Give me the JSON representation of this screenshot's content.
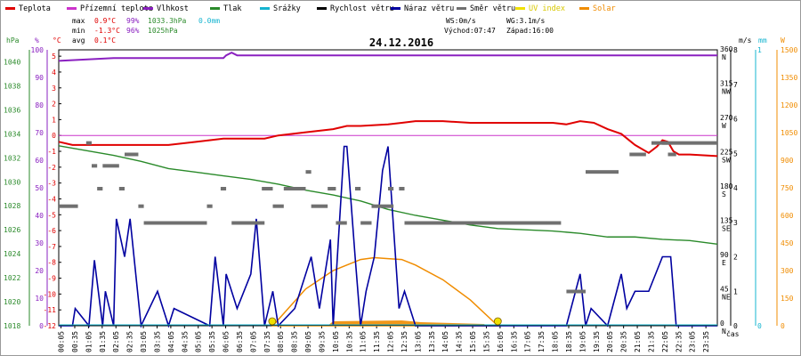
{
  "chart_data": {
    "type": "line",
    "title": "24.12.2016",
    "legend": [
      {
        "name": "Teplota",
        "color": "#e00000"
      },
      {
        "name": "Přízemní teplota",
        "color": "#cc33cc"
      },
      {
        "name": "Vlhkost",
        "color": "#8a20c0"
      },
      {
        "name": "Tlak",
        "color": "#2a8a2a"
      },
      {
        "name": "Srážky",
        "color": "#14b4d0"
      },
      {
        "name": "Rychlost větru",
        "color": "#000000"
      },
      {
        "name": "Náraz větru",
        "color": "#0000a0"
      },
      {
        "name": "Směr větru",
        "color": "#707070"
      },
      {
        "name": "UV index",
        "color": "#f0e000"
      },
      {
        "name": "Solar",
        "color": "#f08c00"
      }
    ],
    "stats": {
      "max_label": "max",
      "max_temp": "0.9°C",
      "max_hum": "99%",
      "max_press": "1033.3hPa",
      "max_rain": "0.0mm",
      "min_label": "min",
      "min_temp": "-1.3°C",
      "min_hum": "96%",
      "min_press": "1025hPa",
      "avg_label": "avg",
      "avg_temp": "0.1°C",
      "ws": "WS:0m/s",
      "wg": "WG:3.1m/s",
      "sunrise": "Východ:07:47",
      "sunset": "Západ:16:00"
    },
    "axis_headers": {
      "press": "hPa",
      "hum": "%",
      "temp": "°C",
      "wind": "m/s",
      "rain": "mm",
      "solar": "W",
      "time": "čas"
    },
    "y_axes": {
      "pressure": {
        "ticks": [
          1018,
          1020,
          1022,
          1024,
          1026,
          1028,
          1030,
          1032,
          1034,
          1036,
          1038,
          1040
        ],
        "range": [
          1018,
          1041
        ]
      },
      "humidity": {
        "ticks": [
          0,
          10,
          20,
          30,
          40,
          50,
          60,
          70,
          80,
          90,
          100
        ],
        "range": [
          0,
          100
        ]
      },
      "temperature": {
        "ticks": [
          -12,
          -11,
          -10,
          -9,
          -8,
          -7,
          -6,
          -5,
          -4,
          -3,
          -2,
          -1,
          0,
          1,
          2,
          3,
          4,
          5
        ],
        "range": [
          -12,
          5.4
        ]
      },
      "direction": {
        "ticks": [
          {
            "deg": "0",
            "dir": "N"
          },
          {
            "deg": "45",
            "dir": "NE"
          },
          {
            "deg": "90",
            "dir": "E"
          },
          {
            "deg": "135",
            "dir": "SE"
          },
          {
            "deg": "180",
            "dir": "S"
          },
          {
            "deg": "225",
            "dir": "SW"
          },
          {
            "deg": "270",
            "dir": "W"
          },
          {
            "deg": "315",
            "dir": "NW"
          },
          {
            "deg": "360",
            "dir": "N"
          }
        ]
      },
      "wind": {
        "ticks": [
          "0",
          "1",
          "2",
          "3",
          "4",
          "5",
          "6",
          "7",
          "8"
        ],
        "range": [
          0,
          8
        ]
      },
      "rain": {
        "ticks": [
          "0",
          "1"
        ],
        "range": [
          0,
          1
        ]
      },
      "solar": {
        "ticks": [
          "0",
          "150",
          "300",
          "450",
          "600",
          "750",
          "900",
          "1050",
          "1200",
          "1350",
          "1500"
        ],
        "range": [
          0,
          1500
        ]
      }
    },
    "x_axis": {
      "range_hours": [
        0,
        24
      ],
      "ticks": [
        "00:05",
        "00:35",
        "01:05",
        "01:35",
        "02:05",
        "02:35",
        "03:05",
        "03:35",
        "04:05",
        "04:35",
        "05:05",
        "05:35",
        "06:05",
        "06:35",
        "07:05",
        "07:35",
        "08:05",
        "08:35",
        "09:05",
        "09:35",
        "10:05",
        "10:35",
        "11:05",
        "11:35",
        "12:05",
        "12:35",
        "13:05",
        "13:35",
        "14:05",
        "14:35",
        "15:05",
        "15:35",
        "16:05",
        "16:35",
        "17:05",
        "17:35",
        "18:05",
        "18:35",
        "19:05",
        "19:35",
        "20:05",
        "20:35",
        "21:05",
        "21:35",
        "22:05",
        "22:35",
        "23:05",
        "23:35"
      ]
    },
    "series": [
      {
        "name": "Teplota",
        "axis": "temperature",
        "x": [
          0,
          0.5,
          1,
          2,
          3,
          4,
          5,
          6,
          7,
          7.5,
          8,
          9,
          10,
          10.5,
          11,
          12,
          12.5,
          13,
          14,
          15,
          16,
          17,
          18,
          18.5,
          19,
          19.5,
          20,
          20.5,
          21,
          21.5,
          21.8,
          22,
          22.2,
          22.4,
          22.6,
          23,
          24
        ],
        "values": [
          -0.4,
          -0.6,
          -0.6,
          -0.6,
          -0.6,
          -0.6,
          -0.4,
          -0.2,
          -0.2,
          -0.2,
          0.0,
          0.2,
          0.4,
          0.6,
          0.6,
          0.7,
          0.8,
          0.9,
          0.9,
          0.8,
          0.8,
          0.8,
          0.8,
          0.7,
          0.9,
          0.8,
          0.4,
          0.1,
          -0.6,
          -1.1,
          -0.7,
          -0.3,
          -0.4,
          -1.0,
          -1.2,
          -1.2,
          -1.3
        ]
      },
      {
        "name": "Přízemní teplota",
        "axis": "temperature",
        "x": [
          0,
          24
        ],
        "values": [
          0.0,
          0.0
        ]
      },
      {
        "name": "Vlhkost",
        "axis": "humidity",
        "x": [
          0,
          2,
          4,
          5,
          6,
          6.1,
          6.3,
          6.5,
          7,
          12,
          18,
          24
        ],
        "values": [
          96,
          97,
          97,
          97,
          97,
          98,
          99,
          98,
          98,
          98,
          98,
          98
        ]
      },
      {
        "name": "Tlak",
        "axis": "pressure",
        "x": [
          0,
          1,
          2,
          3,
          4,
          5,
          6,
          7,
          8,
          9,
          10,
          11,
          12,
          13,
          14,
          15,
          16,
          17,
          18,
          19,
          20,
          21,
          22,
          23,
          24
        ],
        "values": [
          1033,
          1032.6,
          1032.2,
          1031.7,
          1031.1,
          1030.8,
          1030.5,
          1030.2,
          1029.8,
          1029.3,
          1028.9,
          1028.4,
          1027.7,
          1027.2,
          1026.8,
          1026.4,
          1026.1,
          1026,
          1025.9,
          1025.7,
          1025.4,
          1025.4,
          1025.2,
          1025.1,
          1024.8
        ]
      },
      {
        "name": "Srážky",
        "axis": "rain",
        "x": [
          0,
          24
        ],
        "values": [
          0,
          0
        ]
      },
      {
        "name": "Rychlost větru",
        "axis": "wind",
        "x": [
          0,
          24
        ],
        "values": [
          0,
          0
        ]
      },
      {
        "name": "Náraz větru",
        "axis": "wind",
        "x": [
          0,
          0.5,
          0.6,
          1.1,
          1.3,
          1.6,
          1.7,
          2.0,
          2.1,
          2.4,
          2.6,
          3.0,
          3.6,
          4.0,
          4.2,
          5.5,
          5.7,
          6.0,
          6.1,
          6.5,
          7.0,
          7.2,
          7.5,
          7.8,
          8.0,
          8.6,
          9.2,
          9.5,
          9.9,
          10.0,
          10.4,
          10.5,
          10.8,
          11.0,
          11.2,
          11.5,
          11.8,
          12.0,
          12.4,
          12.6,
          12.8,
          13.0,
          13.5,
          18.5,
          19.0,
          19.2,
          19.4,
          20.0,
          20.5,
          20.7,
          21.0,
          21.5,
          22.0,
          22.3,
          22.5,
          22.7,
          24
        ],
        "values": [
          0,
          0,
          0.5,
          0,
          1.9,
          0,
          1.0,
          0,
          3.1,
          2.0,
          3.1,
          0,
          1.0,
          0,
          0.5,
          0,
          2.0,
          0,
          1.5,
          0.5,
          1.5,
          3.1,
          0,
          1.0,
          0,
          0.5,
          2.0,
          0.5,
          2.5,
          0,
          5.2,
          5.2,
          2.0,
          0,
          1.0,
          2.0,
          4.5,
          5.2,
          0.5,
          1.0,
          0.5,
          0,
          0,
          0,
          1.5,
          0,
          0.5,
          0,
          1.5,
          0.5,
          1.0,
          1.0,
          2.0,
          2.0,
          0,
          0,
          0
        ]
      },
      {
        "name": "Směr větru",
        "axis": "direction",
        "segments": [
          [
            0,
            0.7,
            157
          ],
          [
            1.0,
            1.2,
            240
          ],
          [
            1.2,
            1.4,
            210
          ],
          [
            1.4,
            1.6,
            180
          ],
          [
            1.6,
            2.2,
            210
          ],
          [
            2.2,
            2.4,
            180
          ],
          [
            2.4,
            2.9,
            225
          ],
          [
            2.9,
            3.1,
            157
          ],
          [
            3.1,
            5.4,
            135
          ],
          [
            5.4,
            5.6,
            157
          ],
          [
            5.9,
            6.1,
            180
          ],
          [
            6.3,
            7.5,
            135
          ],
          [
            7.4,
            7.8,
            180
          ],
          [
            7.8,
            8.2,
            157
          ],
          [
            8.2,
            9.0,
            180
          ],
          [
            9.0,
            9.2,
            202
          ],
          [
            9.2,
            9.8,
            157
          ],
          [
            9.8,
            10.1,
            180
          ],
          [
            10.1,
            10.5,
            135
          ],
          [
            10.8,
            11.0,
            180
          ],
          [
            11.0,
            11.4,
            135
          ],
          [
            11.4,
            12.2,
            157
          ],
          [
            12.0,
            12.2,
            180
          ],
          [
            12.4,
            12.6,
            180
          ],
          [
            12.6,
            18.3,
            135
          ],
          [
            17.8,
            18.3,
            135
          ],
          [
            18.5,
            19.2,
            45
          ],
          [
            19.2,
            20.4,
            202
          ],
          [
            20.8,
            21.4,
            225
          ],
          [
            21.6,
            22.2,
            240
          ],
          [
            22.0,
            24.0,
            240
          ],
          [
            22.2,
            22.5,
            225
          ]
        ]
      },
      {
        "name": "UV index",
        "axis": "solar",
        "markers": [
          {
            "x": 7.78,
            "label": "sunrise"
          },
          {
            "x": 16.0,
            "label": "sunset"
          }
        ]
      },
      {
        "name": "Solar",
        "axis": "solar",
        "x": [
          7.8,
          9,
          10,
          11,
          11.5,
          12,
          12.5,
          13,
          14,
          15,
          16
        ],
        "values": [
          0,
          200,
          300,
          360,
          370,
          365,
          360,
          330,
          250,
          140,
          0
        ]
      }
    ]
  }
}
